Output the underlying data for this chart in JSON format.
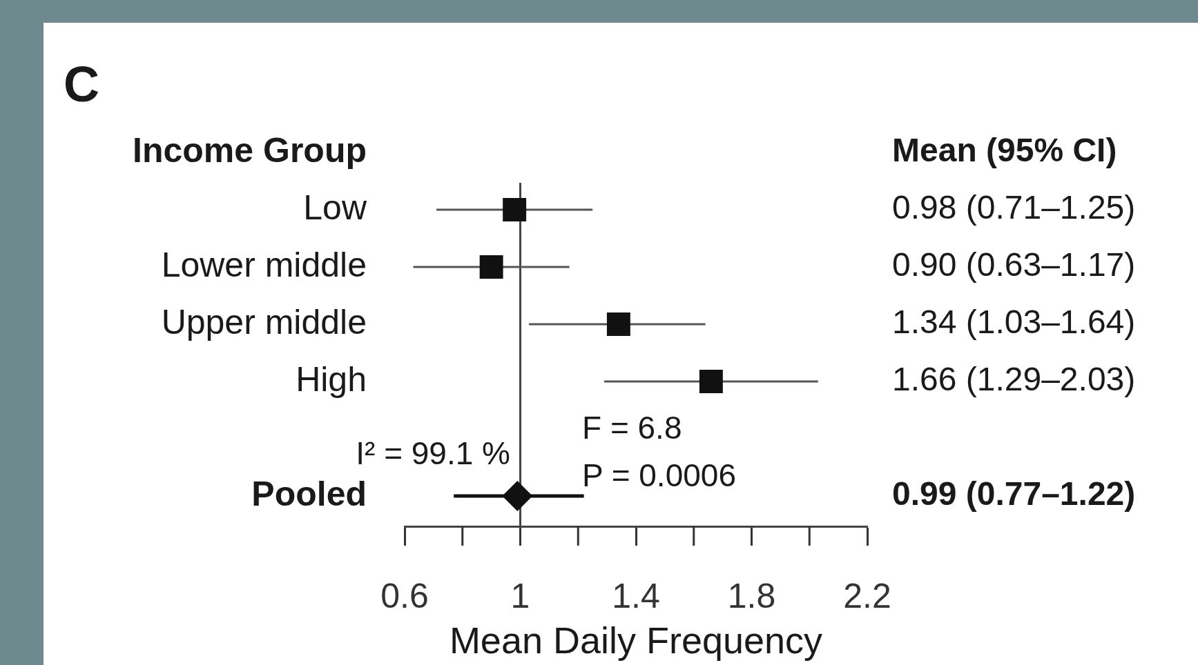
{
  "chart_data": {
    "type": "scatter",
    "orientation": "horizontal",
    "title": "C",
    "ylabel": "Income Group",
    "xlabel": "Mean Daily Frequency",
    "categories": [
      "Low",
      "Lower middle",
      "Upper middle",
      "High",
      null,
      "Pooled"
    ],
    "series": [
      {
        "color": "#111111",
        "marker": "square",
        "values": [
          0.98,
          0.9,
          1.34,
          1.66,
          null,
          null
        ],
        "errors": [
          [
            0.71,
            1.25
          ],
          [
            0.63,
            1.17
          ],
          [
            1.03,
            1.64
          ],
          [
            1.29,
            2.03
          ],
          null,
          null
        ]
      },
      {
        "color": "#111111",
        "marker": "diamond",
        "values": [
          null,
          null,
          null,
          null,
          null,
          0.99
        ],
        "errors": [
          null,
          null,
          null,
          null,
          null,
          [
            0.77,
            1.22
          ]
        ]
      }
    ],
    "value_labels": [
      "0.98 (0.71–1.25)",
      "0.90 (0.63–1.17)",
      "1.34 (1.03–1.64)",
      "1.66 (1.29–2.03)",
      null,
      "0.99 (0.77–1.22)"
    ],
    "xlim": [
      0.6,
      2.2
    ],
    "xticks": [
      0.6,
      1,
      1.4,
      1.8,
      2.2
    ],
    "ref_lines": [
      {
        "axis": "x",
        "value": 1,
        "color": "#444444"
      }
    ],
    "annotations": [
      "Mean (95% CI)",
      "I² = 99.1 %",
      "F = 6.8",
      "P = 0.0006"
    ],
    "grid": false,
    "legend": false
  }
}
